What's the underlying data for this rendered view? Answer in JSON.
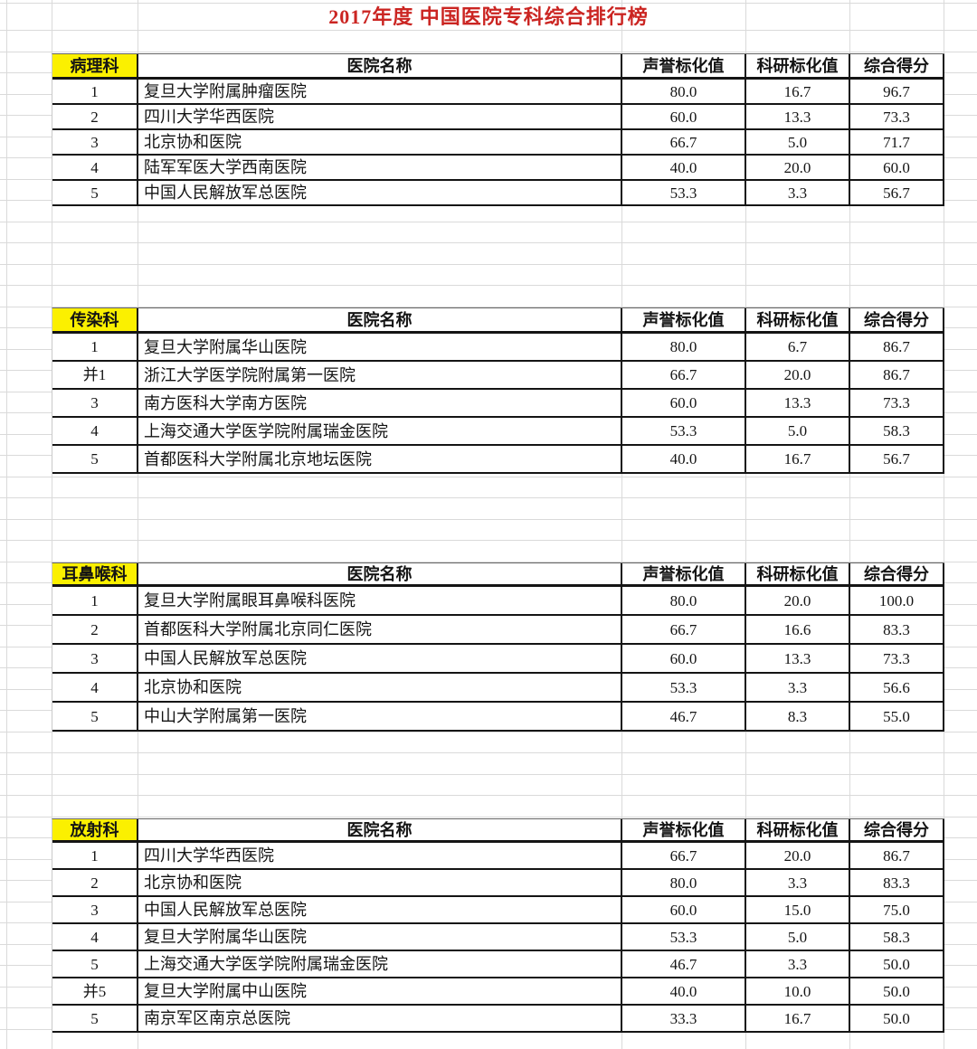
{
  "title": "2017年度 中国医院专科综合排行榜",
  "headers": {
    "hospital": "医院名称",
    "reputation": "声誉标化值",
    "research": "科研标化值",
    "score": "综合得分"
  },
  "colors": {
    "title_red": "#CB2522",
    "category_yellow": "#FBF000",
    "border_black": "#141414",
    "gridline_gray": "#DADADA"
  },
  "tables": [
    {
      "category": "病理科",
      "rows": [
        {
          "rank": "1",
          "hospital": "复旦大学附属肿瘤医院",
          "reputation": "80.0",
          "research": "16.7",
          "score": "96.7"
        },
        {
          "rank": "2",
          "hospital": "四川大学华西医院",
          "reputation": "60.0",
          "research": "13.3",
          "score": "73.3"
        },
        {
          "rank": "3",
          "hospital": "北京协和医院",
          "reputation": "66.7",
          "research": "5.0",
          "score": "71.7"
        },
        {
          "rank": "4",
          "hospital": "陆军军医大学西南医院",
          "reputation": "40.0",
          "research": "20.0",
          "score": "60.0"
        },
        {
          "rank": "5",
          "hospital": "中国人民解放军总医院",
          "reputation": "53.3",
          "research": "3.3",
          "score": "56.7"
        }
      ]
    },
    {
      "category": "传染科",
      "rows": [
        {
          "rank": "1",
          "hospital": "复旦大学附属华山医院",
          "reputation": "80.0",
          "research": "6.7",
          "score": "86.7"
        },
        {
          "rank": "并1",
          "hospital": "浙江大学医学院附属第一医院",
          "reputation": "66.7",
          "research": "20.0",
          "score": "86.7"
        },
        {
          "rank": "3",
          "hospital": "南方医科大学南方医院",
          "reputation": "60.0",
          "research": "13.3",
          "score": "73.3"
        },
        {
          "rank": "4",
          "hospital": "上海交通大学医学院附属瑞金医院",
          "reputation": "53.3",
          "research": "5.0",
          "score": "58.3"
        },
        {
          "rank": "5",
          "hospital": "首都医科大学附属北京地坛医院",
          "reputation": "40.0",
          "research": "16.7",
          "score": "56.7"
        }
      ]
    },
    {
      "category": "耳鼻喉科",
      "rows": [
        {
          "rank": "1",
          "hospital": "复旦大学附属眼耳鼻喉科医院",
          "reputation": "80.0",
          "research": "20.0",
          "score": "100.0"
        },
        {
          "rank": "2",
          "hospital": "首都医科大学附属北京同仁医院",
          "reputation": "66.7",
          "research": "16.6",
          "score": "83.3"
        },
        {
          "rank": "3",
          "hospital": "中国人民解放军总医院",
          "reputation": "60.0",
          "research": "13.3",
          "score": "73.3"
        },
        {
          "rank": "4",
          "hospital": "北京协和医院",
          "reputation": "53.3",
          "research": "3.3",
          "score": "56.6"
        },
        {
          "rank": "5",
          "hospital": "中山大学附属第一医院",
          "reputation": "46.7",
          "research": "8.3",
          "score": "55.0"
        }
      ]
    },
    {
      "category": "放射科",
      "rows": [
        {
          "rank": "1",
          "hospital": "四川大学华西医院",
          "reputation": "66.7",
          "research": "20.0",
          "score": "86.7"
        },
        {
          "rank": "2",
          "hospital": "北京协和医院",
          "reputation": "80.0",
          "research": "3.3",
          "score": "83.3"
        },
        {
          "rank": "3",
          "hospital": "中国人民解放军总医院",
          "reputation": "60.0",
          "research": "15.0",
          "score": "75.0"
        },
        {
          "rank": "4",
          "hospital": "复旦大学附属华山医院",
          "reputation": "53.3",
          "research": "5.0",
          "score": "58.3"
        },
        {
          "rank": "5",
          "hospital": "上海交通大学医学院附属瑞金医院",
          "reputation": "46.7",
          "research": "3.3",
          "score": "50.0"
        },
        {
          "rank": "并5",
          "hospital": "复旦大学附属中山医院",
          "reputation": "40.0",
          "research": "10.0",
          "score": "50.0"
        },
        {
          "rank": "5",
          "hospital": "南京军区南京总医院",
          "reputation": "33.3",
          "research": "16.7",
          "score": "50.0"
        }
      ]
    }
  ]
}
